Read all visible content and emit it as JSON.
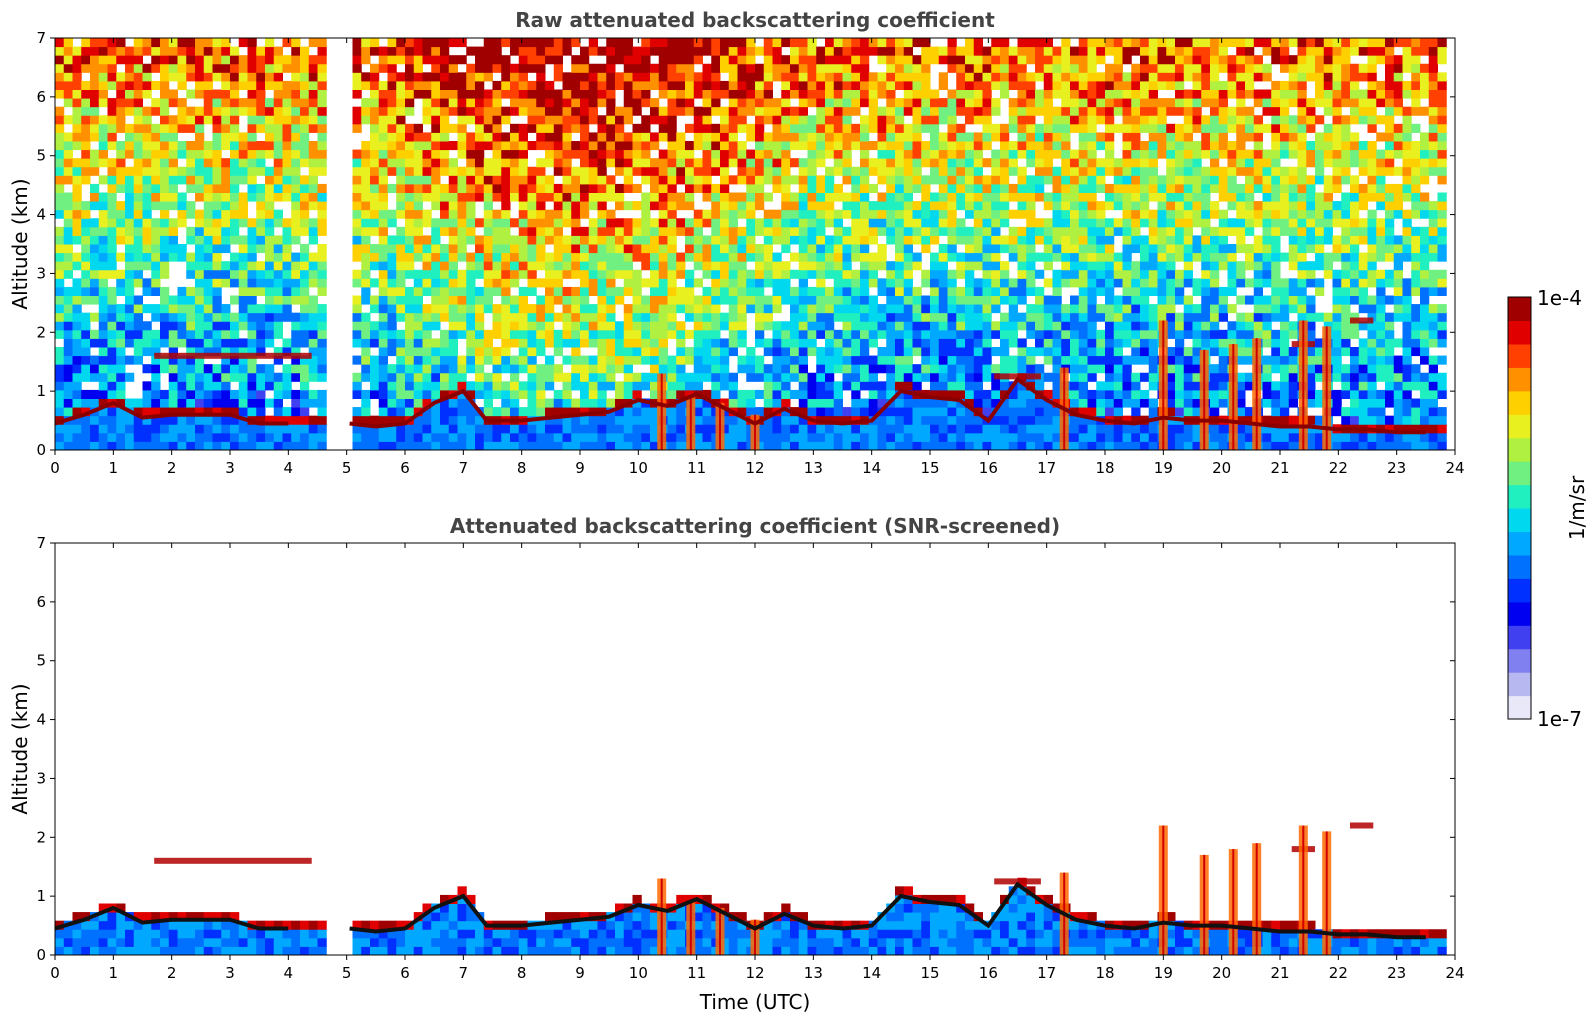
{
  "chart_data": [
    {
      "type": "heatmap",
      "title": "Raw attenuated backscattering coefficient",
      "xlabel": "",
      "ylabel": "Altitude (km)",
      "xlim": [
        0,
        24
      ],
      "ylim": [
        0,
        7
      ],
      "x_ticks": [
        "0",
        "1",
        "2",
        "3",
        "4",
        "5",
        "6",
        "7",
        "8",
        "9",
        "10",
        "11",
        "12",
        "13",
        "14",
        "15",
        "16",
        "17",
        "18",
        "19",
        "20",
        "21",
        "22",
        "23",
        "24"
      ],
      "y_ticks": [
        "0",
        "1",
        "2",
        "3",
        "4",
        "5",
        "6",
        "7"
      ],
      "data_gaps_hours": [
        [
          4.6,
          5.05
        ],
        [
          23.8,
          24
        ]
      ],
      "screened": false,
      "background_noise_level": "high above 3 km, increasing 8-12 UTC",
      "boundary_layer_top_km": [
        [
          0,
          0.45
        ],
        [
          0.5,
          0.6
        ],
        [
          1,
          0.8
        ],
        [
          1.5,
          0.55
        ],
        [
          2,
          0.6
        ],
        [
          2.5,
          0.6
        ],
        [
          3,
          0.6
        ],
        [
          3.5,
          0.45
        ],
        [
          4,
          0.45
        ],
        [
          4.6,
          0.4
        ],
        [
          5.05,
          0.45
        ],
        [
          5.5,
          0.4
        ],
        [
          6,
          0.45
        ],
        [
          6.5,
          0.8
        ],
        [
          7,
          1.0
        ],
        [
          7.4,
          0.5
        ],
        [
          8,
          0.5
        ],
        [
          8.5,
          0.55
        ],
        [
          9,
          0.6
        ],
        [
          9.5,
          0.65
        ],
        [
          10,
          0.85
        ],
        [
          10.5,
          0.75
        ],
        [
          11,
          0.95
        ],
        [
          11.5,
          0.7
        ],
        [
          12,
          0.45
        ],
        [
          12.5,
          0.7
        ],
        [
          13,
          0.5
        ],
        [
          13.5,
          0.45
        ],
        [
          14,
          0.5
        ],
        [
          14.5,
          1.0
        ],
        [
          15,
          0.9
        ],
        [
          15.5,
          0.85
        ],
        [
          16,
          0.5
        ],
        [
          16.5,
          1.2
        ],
        [
          17,
          0.85
        ],
        [
          17.5,
          0.6
        ],
        [
          18,
          0.5
        ],
        [
          18.5,
          0.45
        ],
        [
          19,
          0.55
        ],
        [
          19.5,
          0.5
        ],
        [
          20,
          0.5
        ],
        [
          20.5,
          0.45
        ],
        [
          21,
          0.4
        ],
        [
          21.5,
          0.4
        ],
        [
          22,
          0.35
        ],
        [
          22.5,
          0.35
        ],
        [
          23,
          0.3
        ],
        [
          23.5,
          0.3
        ],
        [
          23.8,
          0.25
        ]
      ],
      "elevated_layers": [
        {
          "start": 1.7,
          "end": 4.4,
          "alt_km": 1.6
        },
        {
          "start": 16.1,
          "end": 16.9,
          "alt_km": 1.25
        },
        {
          "start": 21.2,
          "end": 21.6,
          "alt_km": 1.8
        },
        {
          "start": 22.2,
          "end": 22.6,
          "alt_km": 2.2
        }
      ],
      "vertical_plumes": [
        {
          "hour": 10.4,
          "top_km": 1.3
        },
        {
          "hour": 10.9,
          "top_km": 0.9
        },
        {
          "hour": 11.4,
          "top_km": 0.8
        },
        {
          "hour": 12.0,
          "top_km": 0.6
        },
        {
          "hour": 17.3,
          "top_km": 1.4
        },
        {
          "hour": 19.0,
          "top_km": 2.2
        },
        {
          "hour": 19.7,
          "top_km": 1.7
        },
        {
          "hour": 20.2,
          "top_km": 1.8
        },
        {
          "hour": 20.6,
          "top_km": 1.9
        },
        {
          "hour": 21.4,
          "top_km": 2.2
        },
        {
          "hour": 21.8,
          "top_km": 2.1
        }
      ]
    },
    {
      "type": "heatmap",
      "title": "Attenuated backscattering coefficient (SNR-screened)",
      "xlabel": "Time (UTC)",
      "ylabel": "Altitude (km)",
      "xlim": [
        0,
        24
      ],
      "ylim": [
        0,
        7
      ],
      "x_ticks": [
        "0",
        "1",
        "2",
        "3",
        "4",
        "5",
        "6",
        "7",
        "8",
        "9",
        "10",
        "11",
        "12",
        "13",
        "14",
        "15",
        "16",
        "17",
        "18",
        "19",
        "20",
        "21",
        "22",
        "23",
        "24"
      ],
      "y_ticks": [
        "0",
        "1",
        "2",
        "3",
        "4",
        "5",
        "6",
        "7"
      ],
      "data_gaps_hours": [
        [
          4.6,
          5.05
        ],
        [
          23.8,
          24
        ]
      ],
      "screened": true
    }
  ],
  "colorbar": {
    "label": "1/m/sr",
    "max_label": "1e-4",
    "min_label": "1e-7",
    "scale": "log",
    "colors": [
      "#e8e8f8",
      "#b8b8f0",
      "#8080f0",
      "#4040f0",
      "#0000f0",
      "#0030ff",
      "#0070ff",
      "#00a8ff",
      "#00d8f0",
      "#20f0c0",
      "#70f080",
      "#b0f040",
      "#e8f020",
      "#ffd000",
      "#ff9000",
      "#ff4000",
      "#e00000",
      "#a00000"
    ]
  }
}
